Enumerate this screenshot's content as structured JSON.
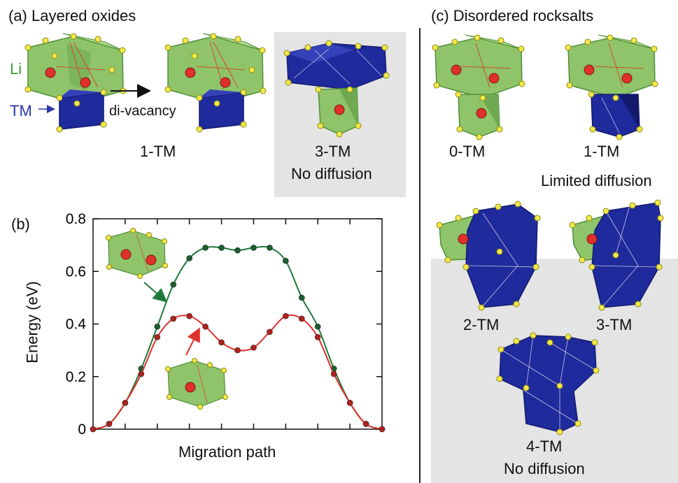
{
  "panel_a": {
    "title": "(a) Layered oxides",
    "li_label": "Li",
    "tm_label": "TM",
    "arrow_label": "di-vacancy",
    "left_caption": "1-TM",
    "gray_caption_1": "3-TM",
    "gray_caption_2": "No diffusion"
  },
  "panel_b": {
    "title": "(b)",
    "chart_data": {
      "type": "line",
      "xlabel": "Migration path",
      "ylabel": "Energy (eV)",
      "ylim": [
        0,
        0.8
      ],
      "yticks": [
        "0",
        "0.2",
        "0.4",
        "0.6",
        "0.8"
      ],
      "xlim": [
        0,
        18
      ],
      "grid": false,
      "series": [
        {
          "color": "#1f7a3a",
          "x": [
            0,
            1,
            2,
            3,
            4,
            5,
            6,
            7,
            8,
            9,
            10,
            11,
            12,
            13,
            14,
            15,
            16,
            17,
            18
          ],
          "values": [
            0,
            0.02,
            0.1,
            0.23,
            0.39,
            0.55,
            0.65,
            0.69,
            0.69,
            0.68,
            0.69,
            0.69,
            0.64,
            0.5,
            0.39,
            0.23,
            0.1,
            0.02,
            0
          ]
        },
        {
          "color": "#e0302a",
          "x": [
            0,
            1,
            2,
            3,
            4,
            5,
            6,
            7,
            8,
            9,
            10,
            11,
            12,
            13,
            14,
            15,
            16,
            17,
            18
          ],
          "values": [
            0,
            0.02,
            0.1,
            0.21,
            0.35,
            0.42,
            0.43,
            0.39,
            0.33,
            0.3,
            0.31,
            0.37,
            0.43,
            0.42,
            0.35,
            0.21,
            0.1,
            0.02,
            0
          ]
        }
      ]
    }
  },
  "panel_c": {
    "title": "(c) Disordered rocksalts",
    "caption_0tm": "0-TM",
    "caption_1tm": "1-TM",
    "caption_limited": "Limited diffusion",
    "caption_2tm": "2-TM",
    "caption_3tm": "3-TM",
    "caption_4tm": "4-TM",
    "caption_none": "No diffusion"
  },
  "colors": {
    "li_green": "#8fc46a",
    "li_green_dark": "#4f8f3a",
    "tm_blue": "#1f2a9c",
    "tm_blue_dark": "#131a6e",
    "vertex_yellow": "#f2e84a",
    "li_atom_red": "#e0302a",
    "panel_gray": "#e4e4e4",
    "curve_green": "#1f7a3a",
    "curve_red": "#e0302a"
  }
}
